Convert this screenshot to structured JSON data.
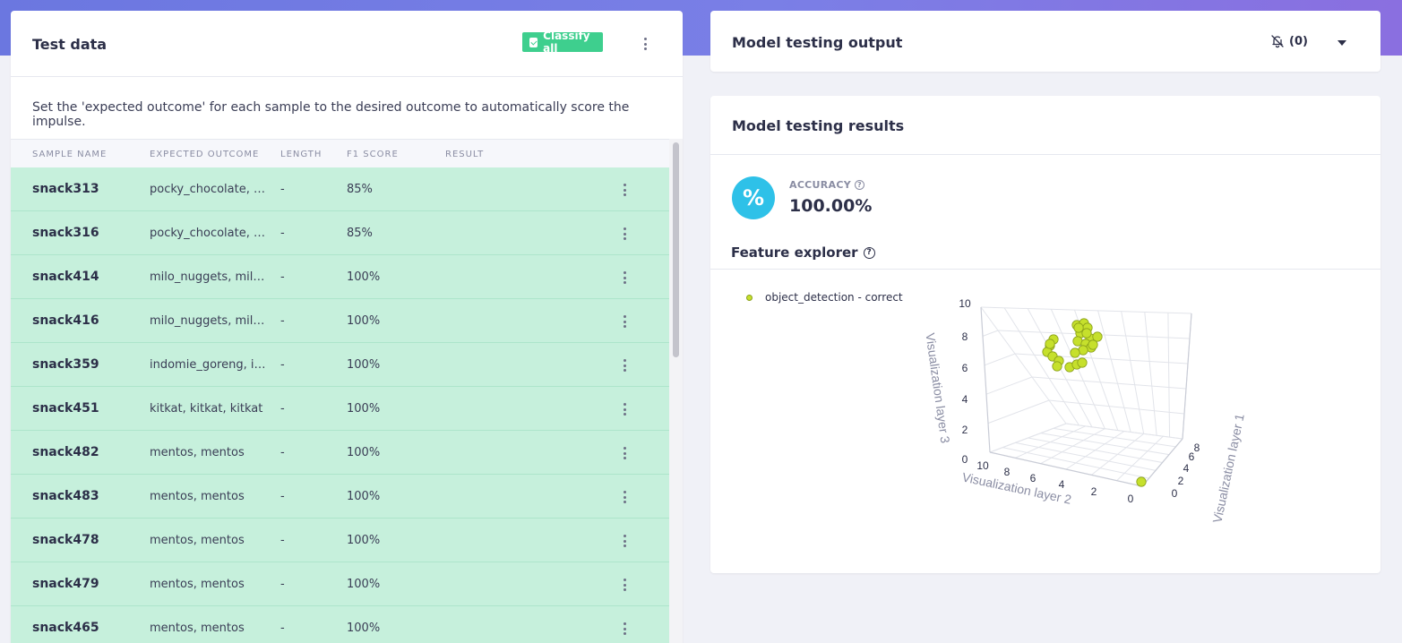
{
  "test_data": {
    "title": "Test data",
    "classify_all_label": "Classify all",
    "description": "Set the 'expected outcome' for each sample to the desired outcome to automatically score the impulse.",
    "columns": [
      "SAMPLE NAME",
      "EXPECTED OUTCOME",
      "LENGTH",
      "F1 SCORE",
      "RESULT"
    ],
    "rows": [
      {
        "name": "snack313",
        "expected": "pocky_chocolate, p...",
        "length": "-",
        "f1": "85%"
      },
      {
        "name": "snack316",
        "expected": "pocky_chocolate, p...",
        "length": "-",
        "f1": "85%"
      },
      {
        "name": "snack414",
        "expected": "milo_nuggets, milo_...",
        "length": "-",
        "f1": "100%"
      },
      {
        "name": "snack416",
        "expected": "milo_nuggets, milo_...",
        "length": "-",
        "f1": "100%"
      },
      {
        "name": "snack359",
        "expected": "indomie_goreng, in...",
        "length": "-",
        "f1": "100%"
      },
      {
        "name": "snack451",
        "expected": "kitkat, kitkat, kitkat",
        "length": "-",
        "f1": "100%"
      },
      {
        "name": "snack482",
        "expected": "mentos, mentos",
        "length": "-",
        "f1": "100%"
      },
      {
        "name": "snack483",
        "expected": "mentos, mentos",
        "length": "-",
        "f1": "100%"
      },
      {
        "name": "snack478",
        "expected": "mentos, mentos",
        "length": "-",
        "f1": "100%"
      },
      {
        "name": "snack479",
        "expected": "mentos, mentos",
        "length": "-",
        "f1": "100%"
      },
      {
        "name": "snack465",
        "expected": "mentos, mentos",
        "length": "-",
        "f1": "100%"
      }
    ],
    "row_color": "#c6f0dc"
  },
  "output": {
    "title": "Model testing output",
    "notification_count": "(0)",
    "icon": "bell-off-icon"
  },
  "results": {
    "title": "Model testing results",
    "accuracy_icon": "%",
    "accuracy_label": "ACCURACY",
    "accuracy_value": "100.00%",
    "feature_explorer_title": "Feature explorer"
  },
  "chart_data": {
    "type": "scatter",
    "series": [
      {
        "name": "object_detection - correct",
        "color": "#c6e02c"
      }
    ],
    "axes": {
      "x_label": "Visualization layer 1",
      "y_label": "Visualization layer 2",
      "z_label": "Visualization layer 3",
      "x_ticks": [
        "0",
        "2",
        "4",
        "6",
        "8"
      ],
      "y_ticks": [
        "10",
        "8",
        "6",
        "4",
        "2",
        "0"
      ],
      "z_ticks": [
        "0",
        "2",
        "4",
        "6",
        "8",
        "10"
      ]
    },
    "grid": true,
    "legend_position": "top-left"
  }
}
